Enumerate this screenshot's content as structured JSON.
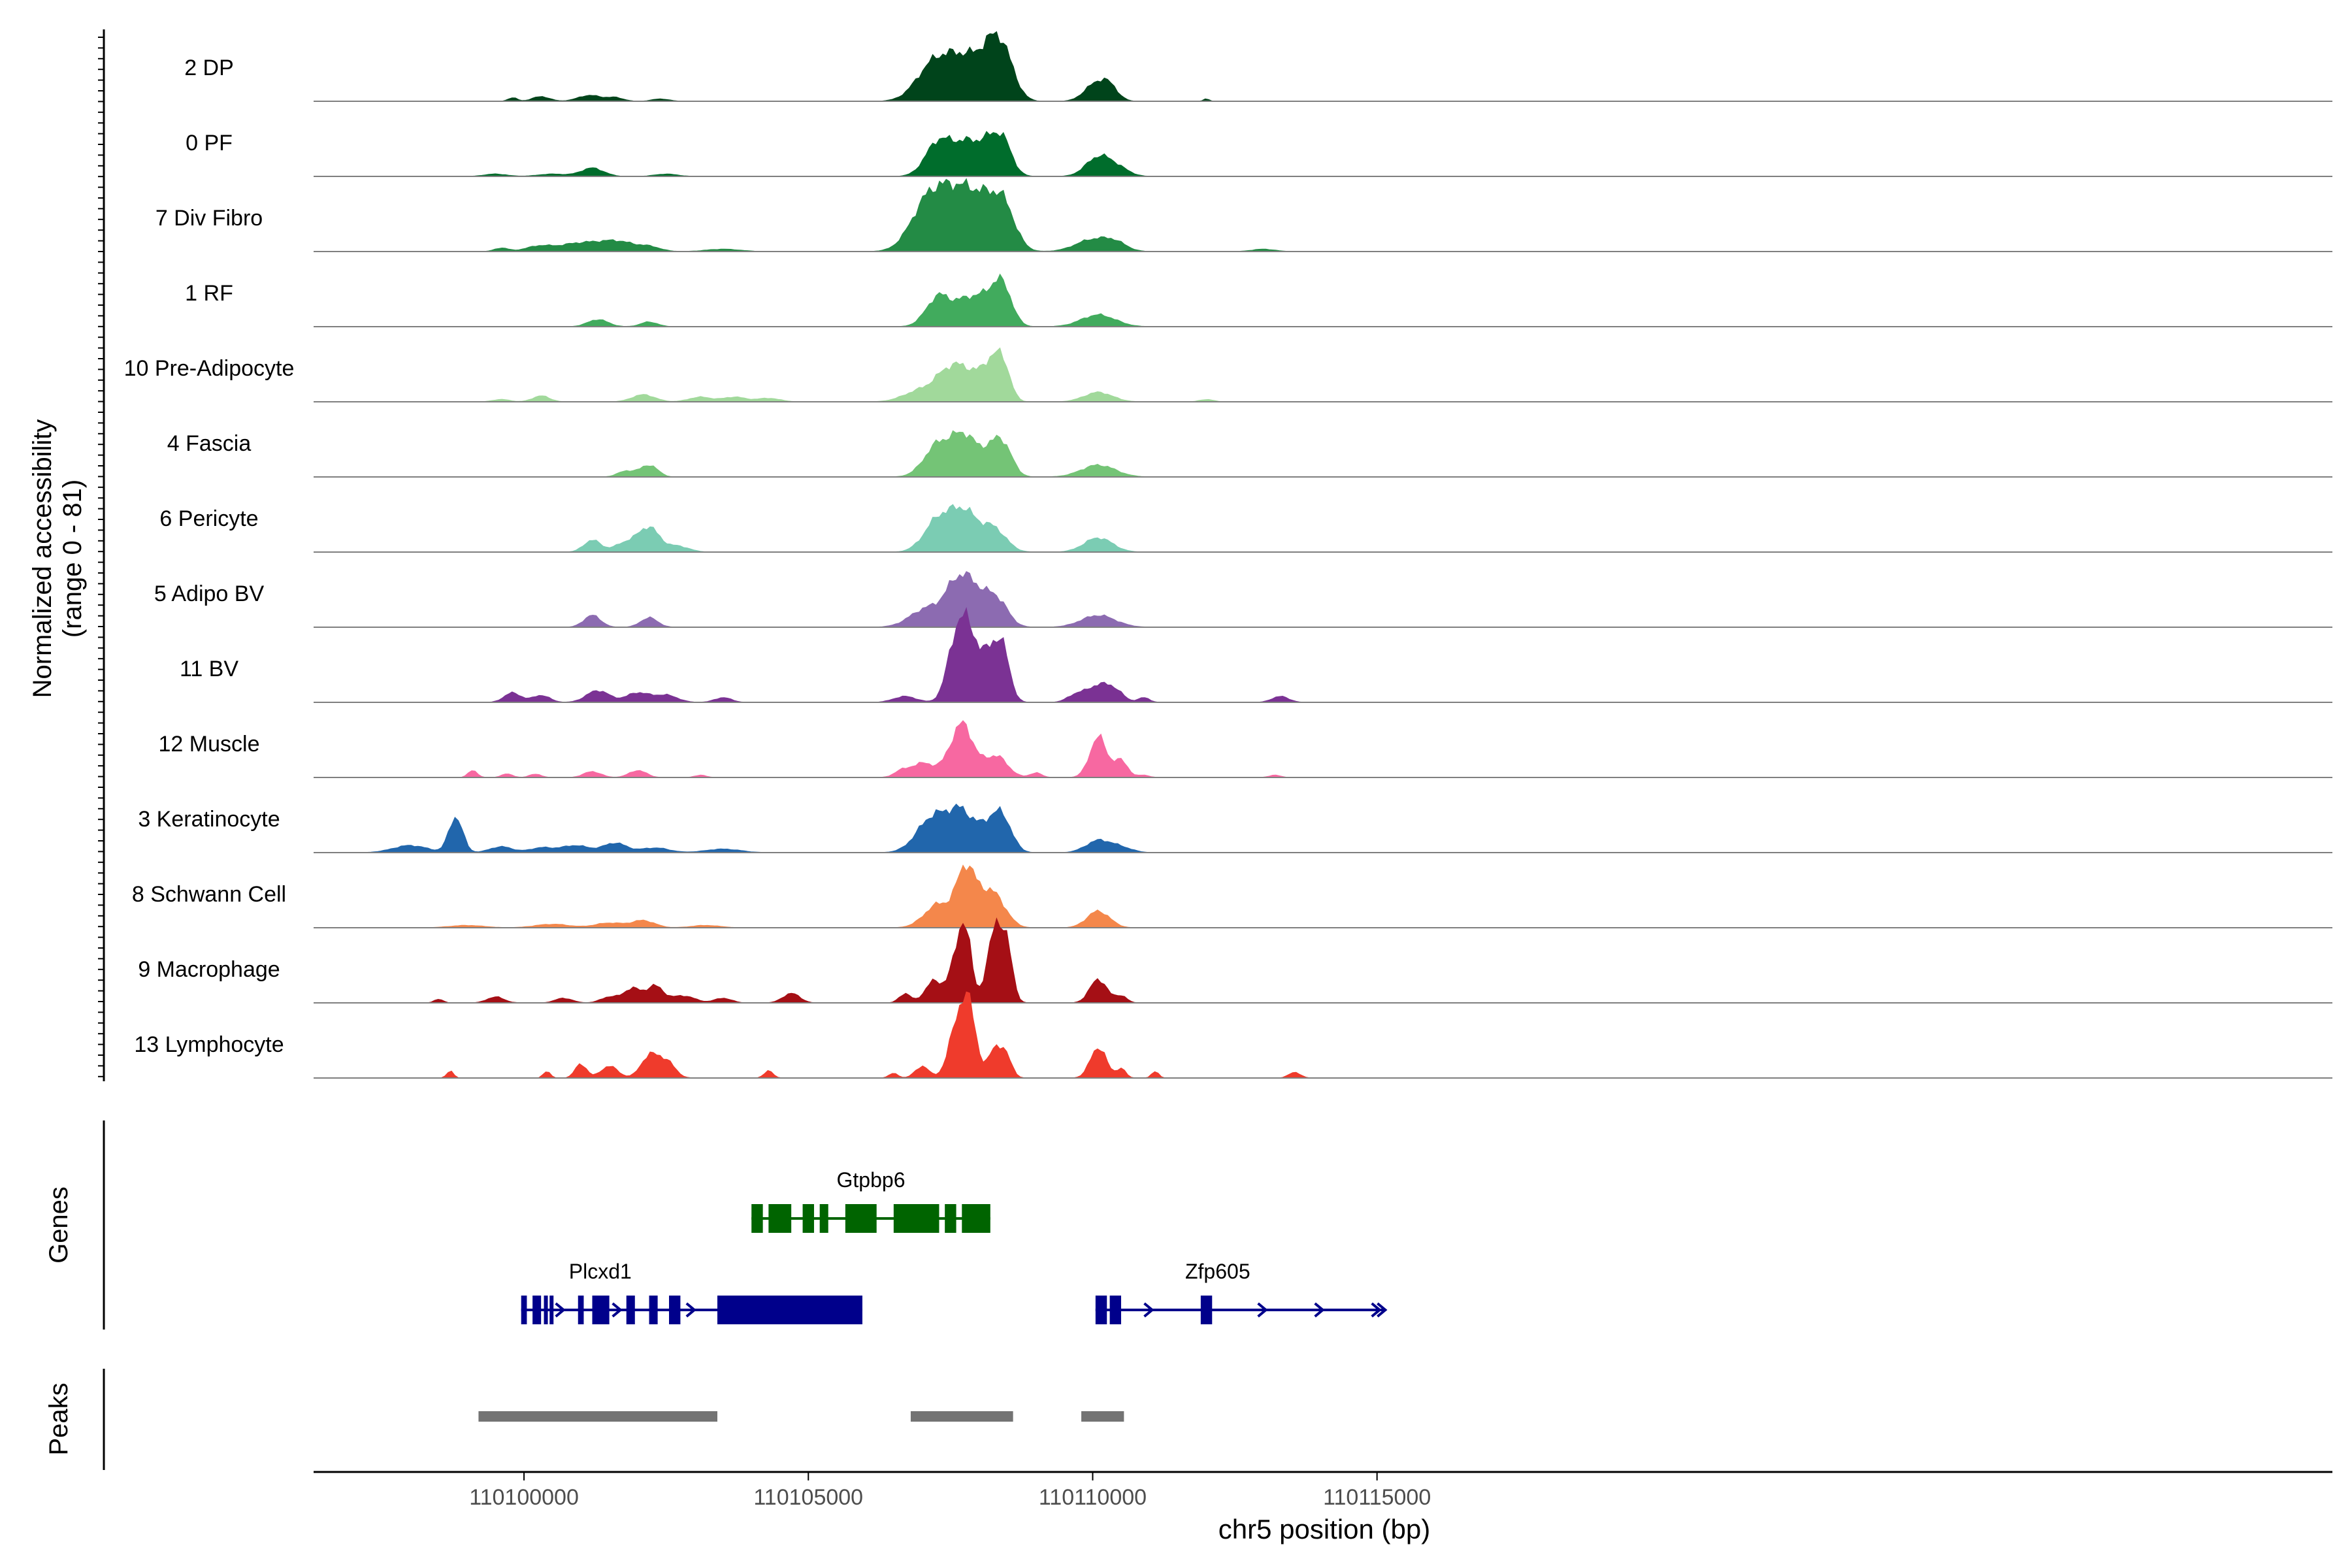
{
  "chart_data": {
    "type": "area",
    "title": "",
    "ylabel_line1": "Normalized accessibility",
    "ylabel_line2": "(range 0 - 81)",
    "xlabel": "chr5 position (bp)",
    "xlim": [
      110096300,
      110131800
    ],
    "ylim": [
      0,
      81
    ],
    "x_ticks": [
      110100000,
      110105000,
      110110000,
      110115000
    ],
    "x_tick_labels": [
      "110100000",
      "110105000",
      "110110000",
      "110115000"
    ],
    "grid": false,
    "tracks": [
      {
        "name": "2 DP",
        "color": "#00441b",
        "peaks": [
          [
            110099800,
            3,
            80
          ],
          [
            110100300,
            4,
            150
          ],
          [
            110101150,
            5,
            200
          ],
          [
            110101600,
            3,
            150
          ],
          [
            110102400,
            2,
            150
          ],
          [
            110107200,
            30,
            300
          ],
          [
            110107750,
            32,
            300
          ],
          [
            110108250,
            35,
            230
          ],
          [
            110108450,
            22,
            200
          ],
          [
            110110050,
            14,
            200
          ],
          [
            110110300,
            10,
            150
          ],
          [
            110112000,
            2,
            50
          ]
        ]
      },
      {
        "name": "0 PF",
        "color": "#006d2c",
        "peaks": [
          [
            110099500,
            2,
            200
          ],
          [
            110100500,
            2,
            250
          ],
          [
            110101200,
            7,
            200
          ],
          [
            110102500,
            2,
            200
          ],
          [
            110107300,
            30,
            230
          ],
          [
            110107750,
            22,
            200
          ],
          [
            110108200,
            30,
            230
          ],
          [
            110108450,
            16,
            150
          ],
          [
            110110100,
            16,
            220
          ],
          [
            110110450,
            6,
            200
          ]
        ]
      },
      {
        "name": "7 Div Fibro",
        "color": "#238b45",
        "peaks": [
          [
            110099600,
            3,
            120
          ],
          [
            110100300,
            5,
            250
          ],
          [
            110100800,
            3,
            200
          ],
          [
            110101200,
            7,
            300
          ],
          [
            110101700,
            7,
            250
          ],
          [
            110102200,
            4,
            200
          ],
          [
            110103500,
            2,
            300
          ],
          [
            110107100,
            40,
            300
          ],
          [
            110107600,
            38,
            300
          ],
          [
            110108100,
            36,
            300
          ],
          [
            110108450,
            26,
            200
          ],
          [
            110110000,
            10,
            300
          ],
          [
            110110400,
            6,
            200
          ],
          [
            110113000,
            2,
            200
          ]
        ]
      },
      {
        "name": "1 RF",
        "color": "#41ab5d",
        "peaks": [
          [
            110101300,
            6,
            180
          ],
          [
            110102200,
            4,
            150
          ],
          [
            110107300,
            26,
            220
          ],
          [
            110107800,
            20,
            200
          ],
          [
            110108250,
            28,
            220
          ],
          [
            110108450,
            18,
            150
          ],
          [
            110110100,
            10,
            300
          ]
        ]
      },
      {
        "name": "10 Pre-Adipocyte",
        "color": "#a1d99b",
        "peaks": [
          [
            110099600,
            2,
            150
          ],
          [
            110100300,
            5,
            150
          ],
          [
            110102100,
            6,
            200
          ],
          [
            110103100,
            4,
            200
          ],
          [
            110103700,
            4,
            200
          ],
          [
            110104300,
            3,
            200
          ],
          [
            110107000,
            10,
            300
          ],
          [
            110107400,
            14,
            200
          ],
          [
            110107750,
            26,
            250
          ],
          [
            110108250,
            32,
            180
          ],
          [
            110108450,
            18,
            120
          ],
          [
            110110100,
            8,
            250
          ],
          [
            110112000,
            2,
            120
          ]
        ]
      },
      {
        "name": "4 Fascia",
        "color": "#74c476",
        "peaks": [
          [
            110101800,
            5,
            150
          ],
          [
            110102200,
            10,
            150
          ],
          [
            110107300,
            28,
            250
          ],
          [
            110107750,
            30,
            200
          ],
          [
            110108250,
            24,
            220
          ],
          [
            110108450,
            14,
            150
          ],
          [
            110110100,
            10,
            300
          ]
        ]
      },
      {
        "name": "6 Pericyte",
        "color": "#7bccb3",
        "peaks": [
          [
            110101200,
            10,
            150
          ],
          [
            110101800,
            8,
            200
          ],
          [
            110102200,
            20,
            180
          ],
          [
            110102700,
            5,
            200
          ],
          [
            110107300,
            28,
            250
          ],
          [
            110107750,
            30,
            220
          ],
          [
            110108250,
            20,
            220
          ],
          [
            110110100,
            12,
            250
          ]
        ]
      },
      {
        "name": "5 Adipo BV",
        "color": "#8c6bb1",
        "peaks": [
          [
            110101200,
            10,
            150
          ],
          [
            110102200,
            8,
            150
          ],
          [
            110107100,
            16,
            300
          ],
          [
            110107600,
            30,
            200
          ],
          [
            110107900,
            26,
            200
          ],
          [
            110108300,
            24,
            200
          ],
          [
            110110100,
            10,
            300
          ]
        ]
      },
      {
        "name": "11 BV",
        "color": "#7b3294",
        "peaks": [
          [
            110099800,
            8,
            150
          ],
          [
            110100300,
            6,
            150
          ],
          [
            110101300,
            10,
            200
          ],
          [
            110102000,
            8,
            200
          ],
          [
            110102500,
            6,
            200
          ],
          [
            110103500,
            4,
            150
          ],
          [
            110106700,
            5,
            200
          ],
          [
            110107600,
            50,
            160
          ],
          [
            110107850,
            48,
            160
          ],
          [
            110108250,
            44,
            170
          ],
          [
            110108450,
            24,
            120
          ],
          [
            110109700,
            6,
            150
          ],
          [
            110110100,
            14,
            200
          ],
          [
            110110400,
            8,
            150
          ],
          [
            110110900,
            4,
            100
          ],
          [
            110113300,
            5,
            150
          ]
        ]
      },
      {
        "name": "12 Muscle",
        "color": "#f768a1",
        "peaks": [
          [
            110099100,
            6,
            80
          ],
          [
            110099700,
            3,
            100
          ],
          [
            110100200,
            3,
            100
          ],
          [
            110101200,
            5,
            150
          ],
          [
            110102000,
            6,
            150
          ],
          [
            110103100,
            2,
            100
          ],
          [
            110106600,
            3,
            100
          ],
          [
            110107000,
            12,
            250
          ],
          [
            110107700,
            45,
            200
          ],
          [
            110108300,
            18,
            200
          ],
          [
            110109000,
            4,
            100
          ],
          [
            110110100,
            34,
            150
          ],
          [
            110110500,
            14,
            120
          ],
          [
            110110900,
            2,
            100
          ],
          [
            110113200,
            2,
            100
          ]
        ]
      },
      {
        "name": "3 Keratinocyte",
        "color": "#2166ac",
        "peaks": [
          [
            110098000,
            6,
            300
          ],
          [
            110098800,
            30,
            120
          ],
          [
            110099600,
            5,
            200
          ],
          [
            110100300,
            4,
            200
          ],
          [
            110100900,
            6,
            250
          ],
          [
            110101600,
            8,
            200
          ],
          [
            110102300,
            4,
            250
          ],
          [
            110103500,
            3,
            300
          ],
          [
            110107200,
            30,
            280
          ],
          [
            110107700,
            30,
            220
          ],
          [
            110108250,
            26,
            220
          ],
          [
            110108450,
            14,
            150
          ],
          [
            110110100,
            10,
            220
          ],
          [
            110110500,
            4,
            200
          ]
        ]
      },
      {
        "name": "8 Schwann Cell",
        "color": "#f4874b",
        "peaks": [
          [
            110099000,
            2,
            300
          ],
          [
            110100500,
            3,
            300
          ],
          [
            110101500,
            4,
            250
          ],
          [
            110102100,
            6,
            200
          ],
          [
            110103200,
            2,
            250
          ],
          [
            110107300,
            20,
            250
          ],
          [
            110107750,
            40,
            150
          ],
          [
            110108000,
            20,
            200
          ],
          [
            110108300,
            22,
            200
          ],
          [
            110110100,
            14,
            200
          ]
        ]
      },
      {
        "name": "9 Macrophage",
        "color": "#a50f15",
        "peaks": [
          [
            110098500,
            3,
            80
          ],
          [
            110099500,
            5,
            150
          ],
          [
            110100700,
            4,
            150
          ],
          [
            110101500,
            5,
            150
          ],
          [
            110101900,
            12,
            150
          ],
          [
            110102300,
            14,
            150
          ],
          [
            110102800,
            6,
            200
          ],
          [
            110103500,
            4,
            150
          ],
          [
            110104700,
            8,
            150
          ],
          [
            110106700,
            8,
            100
          ],
          [
            110107200,
            18,
            150
          ],
          [
            110107550,
            24,
            120
          ],
          [
            110107750,
            64,
            110
          ],
          [
            110108300,
            62,
            150
          ],
          [
            110108500,
            30,
            100
          ],
          [
            110110100,
            20,
            150
          ],
          [
            110110500,
            6,
            100
          ]
        ]
      },
      {
        "name": "13 Lymphocyte",
        "color": "#ef3b2c",
        "peaks": [
          [
            110098700,
            6,
            60
          ],
          [
            110100400,
            6,
            60
          ],
          [
            110101000,
            12,
            100
          ],
          [
            110101500,
            10,
            150
          ],
          [
            110102200,
            18,
            150
          ],
          [
            110102500,
            14,
            150
          ],
          [
            110104300,
            6,
            80
          ],
          [
            110106500,
            4,
            80
          ],
          [
            110107000,
            10,
            120
          ],
          [
            110107650,
            50,
            160
          ],
          [
            110107850,
            40,
            120
          ],
          [
            110108300,
            26,
            130
          ],
          [
            110108500,
            12,
            100
          ],
          [
            110110100,
            26,
            140
          ],
          [
            110110500,
            8,
            80
          ],
          [
            110111100,
            6,
            60
          ],
          [
            110113550,
            5,
            100
          ]
        ]
      }
    ],
    "genes": [
      {
        "name": "Gtpbp6",
        "color": "#006400",
        "row": 1,
        "strand": "none",
        "start": 110104000,
        "end": 110108200,
        "exons": [
          [
            110104000,
            110104200
          ],
          [
            110104300,
            110104700
          ],
          [
            110104900,
            110105100
          ],
          [
            110105200,
            110105350
          ],
          [
            110105650,
            110106200
          ],
          [
            110106500,
            110107300
          ],
          [
            110107400,
            110107600
          ],
          [
            110107700,
            110108200
          ]
        ]
      },
      {
        "name": "Plcxd1",
        "color": "#00008b",
        "row": 2,
        "strand": "+",
        "start": 110099950,
        "end": 110105950,
        "exons": [
          [
            110099950,
            110100050
          ],
          [
            110100150,
            110100300
          ],
          [
            110100350,
            110100400
          ],
          [
            110100450,
            110100500
          ],
          [
            110100950,
            110101050
          ],
          [
            110101200,
            110101500
          ],
          [
            110101800,
            110101950
          ],
          [
            110102200,
            110102350
          ],
          [
            110102550,
            110102750
          ],
          [
            110103400,
            110105950
          ]
        ],
        "arrows": [
          110100650,
          110101650,
          110102950
        ]
      },
      {
        "name": "Zfp605",
        "color": "#00008b",
        "row": 2,
        "strand": "+",
        "start": 110110050,
        "end": 110115150,
        "exons": [
          [
            110110050,
            110110250
          ],
          [
            110110300,
            110110500
          ],
          [
            110111900,
            110112100
          ]
        ],
        "arrows": [
          110111000,
          110113000,
          110114000,
          110115000,
          110115100
        ]
      }
    ],
    "peaks_track": [
      [
        110099200,
        110103400
      ],
      [
        110106800,
        110108600
      ],
      [
        110109800,
        110110550
      ]
    ],
    "panel_labels": {
      "genes": "Genes",
      "peaks": "Peaks"
    }
  }
}
